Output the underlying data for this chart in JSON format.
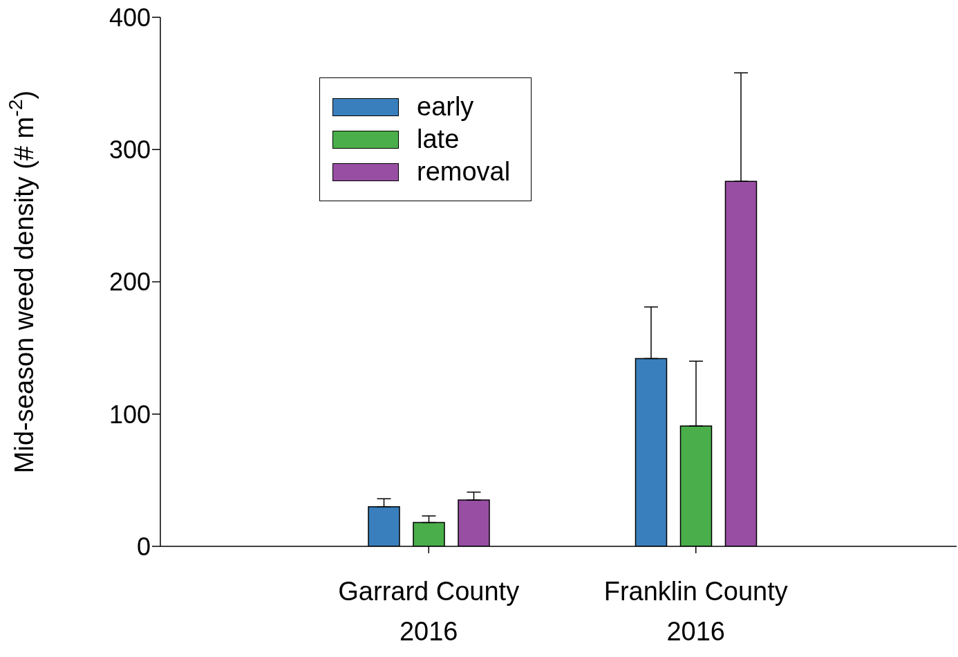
{
  "chart_data": {
    "type": "bar",
    "ylabel": "Mid-season weed density (# m$^{-2}$)",
    "categories": [
      "Garrard County\n2016",
      "Franklin County\n2016"
    ],
    "series": [
      {
        "name": "early",
        "color": "#3a7fbd",
        "values": [
          30,
          142
        ],
        "errors": [
          [
            30,
            36
          ],
          [
            142,
            181
          ]
        ]
      },
      {
        "name": "late",
        "color": "#4aae4a",
        "values": [
          18,
          91
        ],
        "errors": [
          [
            18,
            23
          ],
          [
            91,
            140
          ]
        ]
      },
      {
        "name": "removal",
        "color": "#984ea3",
        "values": [
          35,
          276
        ],
        "errors": [
          [
            35,
            41
          ],
          [
            276,
            358
          ]
        ]
      }
    ],
    "ylim": [
      0,
      400
    ],
    "yticks": [
      0,
      100,
      200,
      300,
      400
    ],
    "grid": false,
    "legend": "top left"
  }
}
